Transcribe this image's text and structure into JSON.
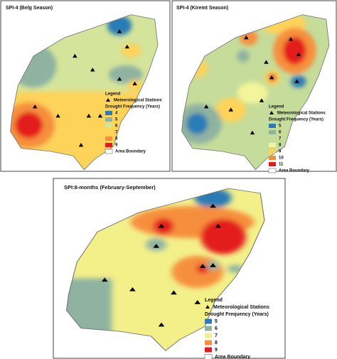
{
  "panels": [
    {
      "title": "SPI-4 (Belg Season)",
      "legend": {
        "title": "Legend",
        "station": "Meteorological Stations",
        "subtitle": "Drought Frequency (Years)",
        "items": [
          {
            "label": "4",
            "color": "#2c7bb6"
          },
          {
            "label": "5",
            "color": "#8fb3a0"
          },
          {
            "label": "6",
            "color": "#d4e49a"
          },
          {
            "label": "7",
            "color": "#fdd35a"
          },
          {
            "label": "8",
            "color": "#f68f3c"
          },
          {
            "label": "9",
            "color": "#e31a1c"
          }
        ],
        "boundary": "Area Boundary"
      }
    },
    {
      "title": "SPI-4 (Kiremt Season)",
      "legend": {
        "title": "Legend",
        "station": "Meteorological Stations",
        "subtitle": "Drought Frequency (Years)",
        "items": [
          {
            "label": "5",
            "color": "#2c7bb6"
          },
          {
            "label": "6",
            "color": "#8fb3a0"
          },
          {
            "label": "7",
            "color": "#c6dc9a"
          },
          {
            "label": "8",
            "color": "#f3f59a"
          },
          {
            "label": "9",
            "color": "#fdd35a"
          },
          {
            "label": "10",
            "color": "#f68f3c"
          },
          {
            "label": "11",
            "color": "#e31a1c"
          }
        ],
        "boundary": "Area Boundary"
      }
    },
    {
      "title": "SPI:8-months (February-September)",
      "legend": {
        "title": "Legend",
        "station": "Meteorological Stations",
        "subtitle": "Drought Frequency (Years)",
        "items": [
          {
            "label": "5",
            "color": "#2c7bb6"
          },
          {
            "label": "6",
            "color": "#8fb3a0"
          },
          {
            "label": "7",
            "color": "#f3f08a"
          },
          {
            "label": "8",
            "color": "#f68f3c"
          },
          {
            "label": "9",
            "color": "#e31a1c"
          }
        ],
        "boundary": "Area Boundary"
      }
    }
  ]
}
